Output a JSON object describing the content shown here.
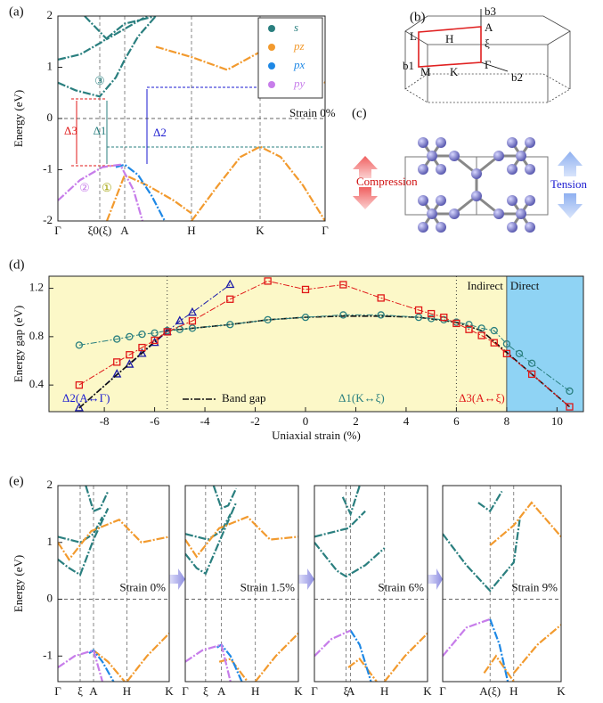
{
  "diagrams": {
    "b": {
      "panel": "(b)",
      "labels": [
        "b3",
        "A",
        "L",
        "H",
        "ξ",
        "b1",
        "M",
        "K",
        "Γ",
        "b2"
      ]
    },
    "c": {
      "panel": "(c)",
      "labels": [
        "Compression",
        "Tension"
      ]
    }
  },
  "chart_data": [
    {
      "type": "line",
      "panel": "(a)",
      "ylabel": "Energy (eV)",
      "xlim": [
        0,
        300
      ],
      "ylim": [
        -2,
        2
      ],
      "yticks": [
        -2,
        -1,
        0,
        1,
        2
      ],
      "xticks": [
        {
          "value": 0,
          "label": "Γ"
        },
        {
          "value": 47,
          "label": "ξ0(ξ)"
        },
        {
          "value": 75,
          "label": "A"
        },
        {
          "value": 150,
          "label": "H"
        },
        {
          "value": 227,
          "label": "K"
        },
        {
          "value": 300,
          "label": "Γ"
        }
      ],
      "grid": "x",
      "hlines": [
        0
      ],
      "legend": "upper right",
      "annotations": [
        "Strain 0%",
        "Δ1",
        "Δ2",
        "Δ3",
        "③",
        "②",
        "①"
      ],
      "series": [
        {
          "name": "s",
          "color": "#2a7f7f",
          "bands": [
            {
              "x": [
                0,
                20,
                47,
                65,
                75,
                90,
                110
              ],
              "values": [
                0.7,
                0.55,
                0.43,
                0.8,
                1.15,
                1.6,
                2.0
              ]
            },
            {
              "x": [
                0,
                25,
                50,
                75,
                110
              ],
              "values": [
                1.15,
                1.25,
                1.5,
                1.85,
                2.0
              ]
            },
            {
              "x": [
                30,
                55,
                75,
                100
              ],
              "values": [
                2.0,
                1.55,
                1.75,
                2.0
              ]
            }
          ]
        },
        {
          "name": "pz",
          "color": "#f29a2e",
          "bands": [
            {
              "x": [
                110,
                150,
                190,
                227,
                260,
                300
              ],
              "values": [
                1.4,
                1.2,
                0.95,
                1.3,
                1.1,
                0.7
              ]
            },
            {
              "x": [
                150,
                180,
                205,
                227,
                250,
                275,
                300
              ],
              "values": [
                -2.0,
                -1.3,
                -0.75,
                -0.55,
                -0.75,
                -1.3,
                -2.0
              ]
            },
            {
              "x": [
                55,
                75,
                100,
                130,
                150
              ],
              "values": [
                -2.0,
                -1.1,
                -1.3,
                -1.6,
                -1.85
              ]
            }
          ]
        },
        {
          "name": "px",
          "color": "#1e88e5",
          "bands": [
            {
              "x": [
                65,
                75,
                90,
                105,
                120
              ],
              "values": [
                -0.95,
                -0.9,
                -1.1,
                -1.5,
                -2.0
              ]
            }
          ]
        },
        {
          "name": "py",
          "color": "#c77dea",
          "bands": [
            {
              "x": [
                0,
                25,
                50,
                70,
                85,
                95
              ],
              "values": [
                -1.6,
                -1.2,
                -0.95,
                -0.9,
                -1.4,
                -2.0
              ]
            }
          ]
        }
      ]
    },
    {
      "type": "line",
      "panel": "(d)",
      "xlabel": "Uniaxial strain (%)",
      "ylabel": "Energy gap (eV)",
      "xlim": [
        -10.2,
        11.05
      ],
      "ylim": [
        0.18,
        1.3
      ],
      "xticks": [
        -8,
        -6,
        -4,
        -2,
        0,
        2,
        4,
        6,
        8,
        10
      ],
      "yticks": [
        0.4,
        0.8,
        1.2
      ],
      "vlines": [
        -5.5,
        6
      ],
      "phase_boundary": 8,
      "phase_labels": [
        "Indirect",
        "Direct"
      ],
      "phase_colors": [
        "#fcf8c8",
        "#8fd3f4"
      ],
      "series": [
        {
          "name": "Δ2(A↔Γ)",
          "color": "#1a1aa8",
          "marker": "triangle",
          "x": [
            -9,
            -7.5,
            -7,
            -6.5,
            -6,
            -5.5,
            -5,
            -4.5,
            -3
          ],
          "values": [
            0.21,
            0.49,
            0.57,
            0.66,
            0.75,
            0.84,
            0.93,
            1.0,
            1.23
          ]
        },
        {
          "name": "Band gap",
          "color": "#111111",
          "marker": "none",
          "x": [
            -9,
            -5.5,
            -4.5,
            -3,
            -1.5,
            0,
            1.5,
            3,
            4.5,
            6,
            7,
            8,
            9,
            10.5
          ],
          "values": [
            0.21,
            0.85,
            0.87,
            0.9,
            0.94,
            0.96,
            0.97,
            0.97,
            0.96,
            0.92,
            0.85,
            0.67,
            0.49,
            0.22
          ]
        },
        {
          "name": "Δ1(K↔ξ)",
          "color": "#2a7f7f",
          "marker": "circle",
          "x": [
            -9,
            -7.5,
            -7,
            -6.5,
            -6,
            -5.5,
            -5,
            -4.5,
            -3,
            -1.5,
            0,
            1.5,
            3,
            4.5,
            5,
            5.5,
            6,
            6.5,
            7,
            7.5,
            8,
            8.5,
            9,
            10.5
          ],
          "values": [
            0.73,
            0.78,
            0.8,
            0.82,
            0.83,
            0.85,
            0.86,
            0.87,
            0.9,
            0.94,
            0.96,
            0.98,
            0.98,
            0.96,
            0.95,
            0.94,
            0.92,
            0.9,
            0.87,
            0.85,
            0.74,
            0.66,
            0.58,
            0.35
          ]
        },
        {
          "name": "Δ3(A↔ξ)",
          "color": "#e01818",
          "marker": "square",
          "x": [
            -9,
            -7.5,
            -7,
            -6.5,
            -6,
            -5.5,
            -4.5,
            -3,
            -1.5,
            0,
            1.5,
            3,
            4.5,
            5,
            5.5,
            6,
            6.5,
            7,
            7.5,
            8,
            9,
            10.5
          ],
          "values": [
            0.4,
            0.59,
            0.65,
            0.71,
            0.77,
            0.84,
            0.93,
            1.11,
            1.26,
            1.19,
            1.23,
            1.12,
            1.02,
            0.99,
            0.96,
            0.91,
            0.86,
            0.81,
            0.75,
            0.66,
            0.49,
            0.22
          ]
        }
      ]
    },
    {
      "type": "line",
      "panel": "(e)",
      "ylabel": "Energy (eV)",
      "annotation": "Strain 0%",
      "xlim": [
        0,
        100
      ],
      "ylim": [
        -1.45,
        2
      ],
      "yticks": [
        -1,
        0,
        1,
        2
      ],
      "xticks": [
        {
          "value": 0,
          "label": "Γ"
        },
        {
          "value": 20,
          "label": "ξ"
        },
        {
          "value": 32,
          "label": "A"
        },
        {
          "value": 62,
          "label": "H"
        },
        {
          "value": 100,
          "label": "K"
        }
      ],
      "grid": "x",
      "hlines": [
        0
      ],
      "series": [
        {
          "color": "#2a7f7f",
          "bands": [
            {
              "x": [
                0,
                10,
                20,
                32,
                45
              ],
              "values": [
                0.7,
                0.55,
                0.43,
                1.05,
                1.6
              ]
            },
            {
              "x": [
                0,
                20,
                32,
                40
              ],
              "values": [
                1.1,
                1.0,
                1.15,
                1.45
              ]
            },
            {
              "x": [
                25,
                32,
                38,
                45
              ],
              "values": [
                2.0,
                1.55,
                1.6,
                1.9
              ]
            }
          ]
        },
        {
          "color": "#f29a2e",
          "bands": [
            {
              "x": [
                0,
                10,
                30,
                55,
                75,
                100
              ],
              "values": [
                1.0,
                0.7,
                1.2,
                1.4,
                1.0,
                1.1
              ]
            },
            {
              "x": [
                32,
                45,
                60
              ],
              "values": [
                -0.9,
                -1.1,
                -1.45
              ]
            },
            {
              "x": [
                62,
                80,
                100
              ],
              "values": [
                -1.45,
                -1.0,
                -0.6
              ]
            }
          ]
        },
        {
          "color": "#1e88e5",
          "bands": [
            {
              "x": [
                28,
                32,
                40,
                50
              ],
              "values": [
                -0.95,
                -0.9,
                -1.1,
                -1.45
              ]
            }
          ]
        },
        {
          "color": "#c77dea",
          "bands": [
            {
              "x": [
                0,
                15,
                32,
                40
              ],
              "values": [
                -1.2,
                -1.0,
                -0.9,
                -1.45
              ]
            }
          ]
        }
      ]
    },
    {
      "type": "line",
      "annotation": "Strain 1.5%",
      "xlim": [
        0,
        100
      ],
      "ylim": [
        -1.45,
        2
      ],
      "xticks": [
        {
          "value": 0,
          "label": "Γ"
        },
        {
          "value": 18,
          "label": "ξ"
        },
        {
          "value": 32,
          "label": "A"
        },
        {
          "value": 62,
          "label": "H"
        },
        {
          "value": 100,
          "label": "K"
        }
      ],
      "grid": "x",
      "hlines": [
        0
      ],
      "series": [
        {
          "color": "#2a7f7f",
          "bands": [
            {
              "x": [
                0,
                10,
                18,
                32,
                45
              ],
              "values": [
                0.8,
                0.55,
                0.45,
                1.1,
                1.7
              ]
            },
            {
              "x": [
                0,
                20,
                32,
                40
              ],
              "values": [
                1.15,
                1.05,
                1.2,
                1.5
              ]
            },
            {
              "x": [
                25,
                32,
                38,
                45
              ],
              "values": [
                2.0,
                1.6,
                1.65,
                1.95
              ]
            }
          ]
        },
        {
          "color": "#f29a2e",
          "bands": [
            {
              "x": [
                0,
                10,
                30,
                55,
                75,
                100
              ],
              "values": [
                1.05,
                0.75,
                1.25,
                1.45,
                1.05,
                1.1
              ]
            },
            {
              "x": [
                30,
                40,
                55
              ],
              "values": [
                -1.1,
                -1.05,
                -1.45
              ]
            },
            {
              "x": [
                62,
                80,
                100
              ],
              "values": [
                -1.45,
                -1.0,
                -0.6
              ]
            }
          ]
        },
        {
          "color": "#1e88e5",
          "bands": [
            {
              "x": [
                28,
                32,
                40,
                50
              ],
              "values": [
                -0.85,
                -0.8,
                -1.0,
                -1.45
              ]
            }
          ]
        },
        {
          "color": "#c77dea",
          "bands": [
            {
              "x": [
                0,
                15,
                32,
                40
              ],
              "values": [
                -1.1,
                -0.9,
                -0.8,
                -1.45
              ]
            }
          ]
        }
      ]
    },
    {
      "type": "line",
      "annotation": "Strain 6%",
      "xlim": [
        0,
        100
      ],
      "ylim": [
        -1.45,
        2
      ],
      "xticks": [
        {
          "value": 0,
          "label": "Γ"
        },
        {
          "value": 28,
          "label": "ξ"
        },
        {
          "value": 32,
          "label": "A"
        },
        {
          "value": 62,
          "label": "H"
        },
        {
          "value": 100,
          "label": "K"
        }
      ],
      "grid": "x",
      "hlines": [
        0
      ],
      "series": [
        {
          "color": "#2a7f7f",
          "bands": [
            {
              "x": [
                0,
                20,
                28,
                45,
                62
              ],
              "values": [
                1.0,
                0.5,
                0.4,
                0.6,
                0.9
              ]
            },
            {
              "x": [
                0,
                30,
                45
              ],
              "values": [
                1.1,
                1.25,
                1.55
              ]
            },
            {
              "x": [
                25,
                32,
                40
              ],
              "values": [
                1.8,
                1.5,
                2.0
              ]
            }
          ]
        },
        {
          "color": "#f29a2e",
          "bands": [
            {
              "x": [
                30,
                40,
                55
              ],
              "values": [
                -1.2,
                -1.05,
                -1.45
              ]
            },
            {
              "x": [
                62,
                80,
                100
              ],
              "values": [
                -1.45,
                -1.0,
                -0.6
              ]
            }
          ]
        },
        {
          "color": "#1e88e5",
          "bands": [
            {
              "x": [
                32,
                40,
                50
              ],
              "values": [
                -0.55,
                -0.8,
                -1.45
              ]
            }
          ]
        },
        {
          "color": "#c77dea",
          "bands": [
            {
              "x": [
                0,
                15,
                32
              ],
              "values": [
                -1.0,
                -0.7,
                -0.55
              ]
            }
          ]
        }
      ]
    },
    {
      "type": "line",
      "annotation": "Strain 9%",
      "xlim": [
        0,
        100
      ],
      "ylim": [
        -1.45,
        2
      ],
      "xticks": [
        {
          "value": 0,
          "label": "Γ"
        },
        {
          "value": 40,
          "label": "A(ξ)"
        },
        {
          "value": 60,
          "label": "H"
        },
        {
          "value": 100,
          "label": "K"
        }
      ],
      "grid": "x",
      "hlines": [
        0
      ],
      "series": [
        {
          "color": "#2a7f7f",
          "bands": [
            {
              "x": [
                0,
                20,
                40,
                60,
                65
              ],
              "values": [
                1.15,
                0.6,
                0.15,
                0.65,
                1.4
              ]
            },
            {
              "x": [
                30,
                40,
                50
              ],
              "values": [
                1.7,
                1.55,
                1.9
              ]
            }
          ]
        },
        {
          "color": "#f29a2e",
          "bands": [
            {
              "x": [
                40,
                60,
                75,
                100
              ],
              "values": [
                0.95,
                1.3,
                1.7,
                1.1
              ]
            },
            {
              "x": [
                35,
                45,
                60
              ],
              "values": [
                -1.3,
                -1.0,
                -1.45
              ]
            },
            {
              "x": [
                60,
                80,
                100
              ],
              "values": [
                -1.3,
                -0.8,
                -0.45
              ]
            }
          ]
        },
        {
          "color": "#1e88e5",
          "bands": [
            {
              "x": [
                40,
                48,
                55
              ],
              "values": [
                -0.35,
                -0.8,
                -1.45
              ]
            }
          ]
        },
        {
          "color": "#c77dea",
          "bands": [
            {
              "x": [
                0,
                20,
                40
              ],
              "values": [
                -1.0,
                -0.5,
                -0.35
              ]
            }
          ]
        }
      ]
    }
  ]
}
